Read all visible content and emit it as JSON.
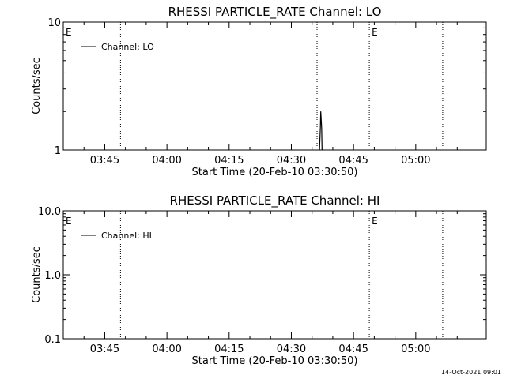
{
  "timestamp": "14-Oct-2021 09:01",
  "colors": {
    "background": "#ffffff",
    "foreground": "#000000"
  },
  "chart_data": [
    {
      "type": "line",
      "title": "RHESSI PARTICLE_RATE Channel: LO",
      "xlabel": "Start Time (20-Feb-10 03:30:50)",
      "ylabel": "Counts/sec",
      "y_scale": "log",
      "ylim": [
        1,
        10
      ],
      "y_ticks": [
        {
          "value": 1,
          "label": "1"
        },
        {
          "value": 10,
          "label": "10"
        }
      ],
      "y_minor_ticks": [
        2,
        3,
        4,
        5,
        6,
        7,
        8,
        9
      ],
      "xlim": [
        "03:35",
        "05:17"
      ],
      "x_ticks": [
        {
          "value": "03:45",
          "label": "03:45"
        },
        {
          "value": "04:00",
          "label": "04:00"
        },
        {
          "value": "04:15",
          "label": "04:15"
        },
        {
          "value": "04:30",
          "label": "04:30"
        },
        {
          "value": "04:45",
          "label": "04:45"
        },
        {
          "value": "05:00",
          "label": "05:00"
        }
      ],
      "vertical_markers": [
        "03:48.8",
        "04:36.2",
        "04:48.8",
        "05:06.5"
      ],
      "marker_labels": [
        {
          "at": "03:35",
          "label": "E"
        },
        {
          "at": "04:48.8",
          "label": "E"
        }
      ],
      "legend": {
        "position": "top-left",
        "entries": [
          "Channel: LO"
        ]
      },
      "series": [
        {
          "name": "Channel: LO",
          "x": [
            "04:36.8",
            "04:37.0",
            "04:37.1",
            "04:37.3",
            "04:37.4"
          ],
          "y": [
            1,
            1.5,
            2,
            1.5,
            1
          ]
        }
      ]
    },
    {
      "type": "line",
      "title": "RHESSI PARTICLE_RATE Channel: HI",
      "xlabel": "Start Time (20-Feb-10 03:30:50)",
      "ylabel": "Counts/sec",
      "y_scale": "log",
      "ylim": [
        0.1,
        10
      ],
      "y_ticks": [
        {
          "value": 0.1,
          "label": "0.1"
        },
        {
          "value": 1,
          "label": "1.0"
        },
        {
          "value": 10,
          "label": "10.0"
        }
      ],
      "y_minor_ticks": [
        0.2,
        0.3,
        0.4,
        0.5,
        0.6,
        0.7,
        0.8,
        0.9,
        2,
        3,
        4,
        5,
        6,
        7,
        8,
        9
      ],
      "xlim": [
        "03:35",
        "05:17"
      ],
      "x_ticks": [
        {
          "value": "03:45",
          "label": "03:45"
        },
        {
          "value": "04:00",
          "label": "04:00"
        },
        {
          "value": "04:15",
          "label": "04:15"
        },
        {
          "value": "04:30",
          "label": "04:30"
        },
        {
          "value": "04:45",
          "label": "04:45"
        },
        {
          "value": "05:00",
          "label": "05:00"
        }
      ],
      "vertical_markers": [
        "03:48.8",
        "04:48.8",
        "05:06.5"
      ],
      "marker_labels": [
        {
          "at": "03:35",
          "label": "E"
        },
        {
          "at": "04:48.8",
          "label": "E"
        }
      ],
      "legend": {
        "position": "top-left",
        "entries": [
          "Channel: HI"
        ]
      },
      "series": [
        {
          "name": "Channel: HI",
          "x": [],
          "y": []
        }
      ]
    }
  ]
}
